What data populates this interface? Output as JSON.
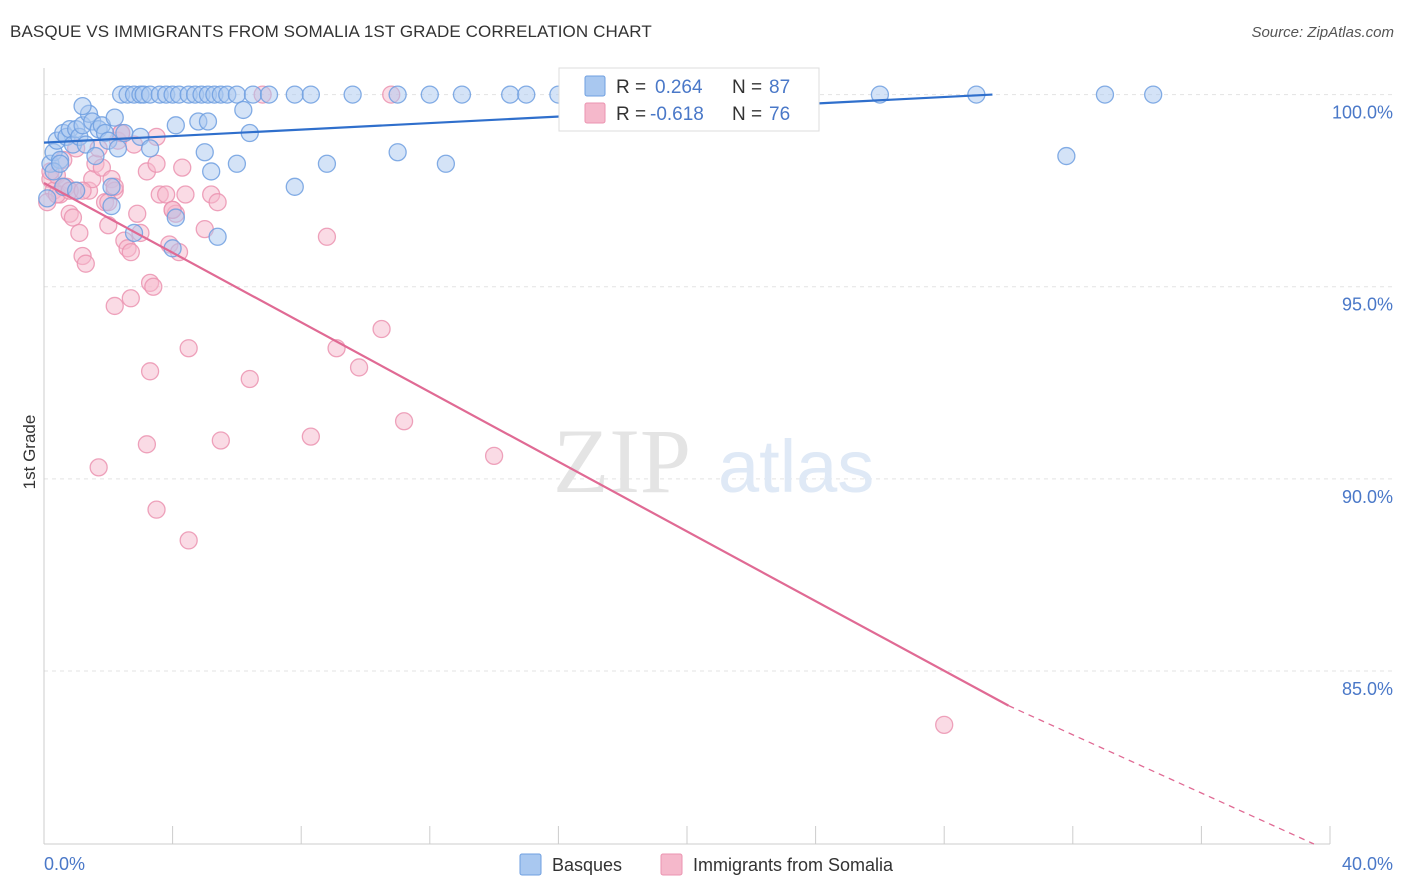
{
  "title": "BASQUE VS IMMIGRANTS FROM SOMALIA 1ST GRADE CORRELATION CHART",
  "source": "Source: ZipAtlas.com",
  "watermark": {
    "zip": "ZIP",
    "atlas": "atlas"
  },
  "colors": {
    "blue_fill": "#a9c8f0",
    "blue_stroke": "#6f9fe0",
    "blue_line": "#2f6fcc",
    "pink_fill": "#f5b8cb",
    "pink_stroke": "#eb93b0",
    "pink_line": "#e06a94",
    "tick_text": "#4a78c8",
    "grid": "#e3e3e3"
  },
  "legend": {
    "series": [
      {
        "r_label": "R =",
        "r_value": "0.264",
        "n_label": "N =",
        "n_value": "87"
      },
      {
        "r_label": "R =",
        "r_value": "-0.618",
        "n_label": "N =",
        "n_value": "76"
      }
    ]
  },
  "chart_data": {
    "type": "scatter",
    "title": "BASQUE VS IMMIGRANTS FROM SOMALIA 1ST GRADE CORRELATION CHART",
    "xlabel": "",
    "ylabel": "1st Grade",
    "xlim": [
      0,
      40
    ],
    "ylim": [
      80.5,
      100.9
    ],
    "x_tick_labels": [
      {
        "value": 0,
        "label": "0.0%"
      },
      {
        "value": 40,
        "label": "40.0%"
      }
    ],
    "y_ticks": [
      {
        "value": 100,
        "label": "100.0%"
      },
      {
        "value": 95,
        "label": "95.0%"
      },
      {
        "value": 90,
        "label": "90.0%"
      },
      {
        "value": 85,
        "label": "85.0%"
      }
    ],
    "grid": true,
    "legend_position": "top-center",
    "series": [
      {
        "name": "Basques",
        "trend": {
          "x0": 0,
          "y0": 98.75,
          "x1": 29.5,
          "y1": 100.0,
          "dashed_to": null
        },
        "points": [
          [
            0.2,
            98.2
          ],
          [
            0.3,
            98.5
          ],
          [
            0.4,
            98.8
          ],
          [
            0.5,
            98.3
          ],
          [
            0.6,
            99.0
          ],
          [
            0.7,
            98.9
          ],
          [
            0.8,
            99.1
          ],
          [
            0.9,
            98.7
          ],
          [
            1.0,
            99.1
          ],
          [
            1.1,
            98.9
          ],
          [
            1.2,
            99.2
          ],
          [
            1.3,
            98.7
          ],
          [
            1.4,
            99.5
          ],
          [
            1.5,
            99.3
          ],
          [
            1.6,
            98.4
          ],
          [
            1.7,
            99.1
          ],
          [
            1.8,
            99.2
          ],
          [
            1.9,
            99.0
          ],
          [
            2.0,
            98.8
          ],
          [
            2.2,
            99.4
          ],
          [
            2.3,
            98.6
          ],
          [
            2.4,
            100.0
          ],
          [
            2.6,
            100.0
          ],
          [
            2.8,
            100.0
          ],
          [
            3.0,
            100.0
          ],
          [
            3.1,
            100.0
          ],
          [
            3.3,
            100.0
          ],
          [
            3.6,
            100.0
          ],
          [
            3.8,
            100.0
          ],
          [
            4.0,
            100.0
          ],
          [
            4.2,
            100.0
          ],
          [
            4.5,
            100.0
          ],
          [
            4.7,
            100.0
          ],
          [
            4.9,
            100.0
          ],
          [
            5.1,
            100.0
          ],
          [
            5.3,
            100.0
          ],
          [
            5.5,
            100.0
          ],
          [
            5.7,
            100.0
          ],
          [
            6.0,
            100.0
          ],
          [
            6.2,
            99.6
          ],
          [
            6.5,
            100.0
          ],
          [
            7.0,
            100.0
          ],
          [
            7.8,
            100.0
          ],
          [
            8.3,
            100.0
          ],
          [
            9.6,
            100.0
          ],
          [
            11.0,
            100.0
          ],
          [
            12.0,
            100.0
          ],
          [
            13.0,
            100.0
          ],
          [
            14.5,
            100.0
          ],
          [
            15.0,
            100.0
          ],
          [
            16.0,
            100.0
          ],
          [
            17.0,
            100.0
          ],
          [
            18.0,
            100.0
          ],
          [
            19.0,
            100.0
          ],
          [
            21.0,
            100.0
          ],
          [
            23.0,
            100.0
          ],
          [
            26.0,
            100.0
          ],
          [
            29.0,
            100.0
          ],
          [
            33.0,
            100.0
          ],
          [
            34.5,
            100.0
          ],
          [
            1.2,
            99.7
          ],
          [
            2.5,
            99.0
          ],
          [
            3.0,
            98.9
          ],
          [
            3.3,
            98.6
          ],
          [
            4.1,
            99.2
          ],
          [
            4.8,
            99.3
          ],
          [
            5.1,
            99.3
          ],
          [
            6.4,
            99.0
          ],
          [
            5.0,
            98.5
          ],
          [
            5.2,
            98.0
          ],
          [
            6.0,
            98.2
          ],
          [
            7.8,
            97.6
          ],
          [
            8.8,
            98.2
          ],
          [
            11.0,
            98.5
          ],
          [
            12.5,
            98.2
          ],
          [
            31.8,
            98.4
          ],
          [
            2.1,
            97.6
          ],
          [
            2.1,
            97.1
          ],
          [
            2.8,
            96.4
          ],
          [
            4.1,
            96.8
          ],
          [
            5.4,
            96.3
          ],
          [
            4.0,
            96.0
          ],
          [
            0.3,
            98.0
          ],
          [
            0.5,
            98.2
          ],
          [
            0.6,
            97.6
          ],
          [
            1.0,
            97.5
          ],
          [
            0.1,
            97.3
          ]
        ]
      },
      {
        "name": "Immigrants from Somalia",
        "trend": {
          "x0": 0,
          "y0": 97.7,
          "x1": 30.0,
          "y1": 84.1,
          "dashed_to": {
            "x": 39.5,
            "y": 80.5
          }
        },
        "points": [
          [
            0.2,
            97.8
          ],
          [
            0.3,
            97.5
          ],
          [
            0.4,
            97.9
          ],
          [
            0.5,
            97.4
          ],
          [
            0.6,
            98.3
          ],
          [
            0.7,
            97.6
          ],
          [
            0.8,
            96.9
          ],
          [
            0.9,
            96.8
          ],
          [
            1.0,
            97.5
          ],
          [
            1.1,
            96.4
          ],
          [
            1.2,
            95.8
          ],
          [
            1.3,
            95.6
          ],
          [
            1.4,
            97.5
          ],
          [
            1.5,
            97.8
          ],
          [
            1.6,
            98.2
          ],
          [
            1.7,
            98.6
          ],
          [
            1.8,
            98.1
          ],
          [
            1.9,
            97.2
          ],
          [
            2.0,
            96.6
          ],
          [
            2.1,
            97.8
          ],
          [
            2.2,
            97.5
          ],
          [
            2.3,
            98.8
          ],
          [
            2.4,
            99.0
          ],
          [
            2.5,
            96.2
          ],
          [
            2.6,
            96.0
          ],
          [
            2.7,
            95.9
          ],
          [
            2.8,
            98.7
          ],
          [
            2.9,
            96.9
          ],
          [
            3.0,
            96.4
          ],
          [
            3.2,
            98.0
          ],
          [
            3.3,
            95.1
          ],
          [
            3.4,
            95.0
          ],
          [
            3.5,
            98.2
          ],
          [
            3.6,
            97.4
          ],
          [
            3.8,
            97.4
          ],
          [
            3.9,
            96.1
          ],
          [
            4.0,
            97.0
          ],
          [
            4.1,
            96.9
          ],
          [
            4.2,
            95.9
          ],
          [
            4.3,
            98.1
          ],
          [
            4.4,
            97.4
          ],
          [
            5.0,
            96.5
          ],
          [
            5.2,
            97.4
          ],
          [
            5.4,
            97.2
          ],
          [
            2.2,
            94.5
          ],
          [
            2.7,
            94.7
          ],
          [
            3.3,
            92.8
          ],
          [
            3.2,
            90.9
          ],
          [
            3.5,
            89.2
          ],
          [
            4.5,
            93.4
          ],
          [
            4.5,
            88.4
          ],
          [
            5.5,
            91.0
          ],
          [
            6.4,
            92.6
          ],
          [
            8.3,
            91.1
          ],
          [
            8.8,
            96.3
          ],
          [
            9.1,
            93.4
          ],
          [
            9.8,
            92.9
          ],
          [
            10.5,
            93.9
          ],
          [
            11.2,
            91.5
          ],
          [
            14.0,
            90.6
          ],
          [
            1.7,
            90.3
          ],
          [
            6.8,
            100.0
          ],
          [
            10.8,
            100.0
          ],
          [
            28.0,
            83.6
          ],
          [
            0.1,
            97.2
          ],
          [
            0.2,
            98.0
          ],
          [
            0.4,
            97.4
          ],
          [
            0.6,
            97.6
          ],
          [
            0.8,
            97.5
          ],
          [
            1.0,
            98.6
          ],
          [
            2.2,
            97.6
          ],
          [
            2.4,
            99.0
          ],
          [
            3.5,
            98.9
          ],
          [
            4.0,
            97.0
          ],
          [
            2.0,
            97.2
          ],
          [
            1.2,
            97.5
          ]
        ]
      }
    ]
  }
}
